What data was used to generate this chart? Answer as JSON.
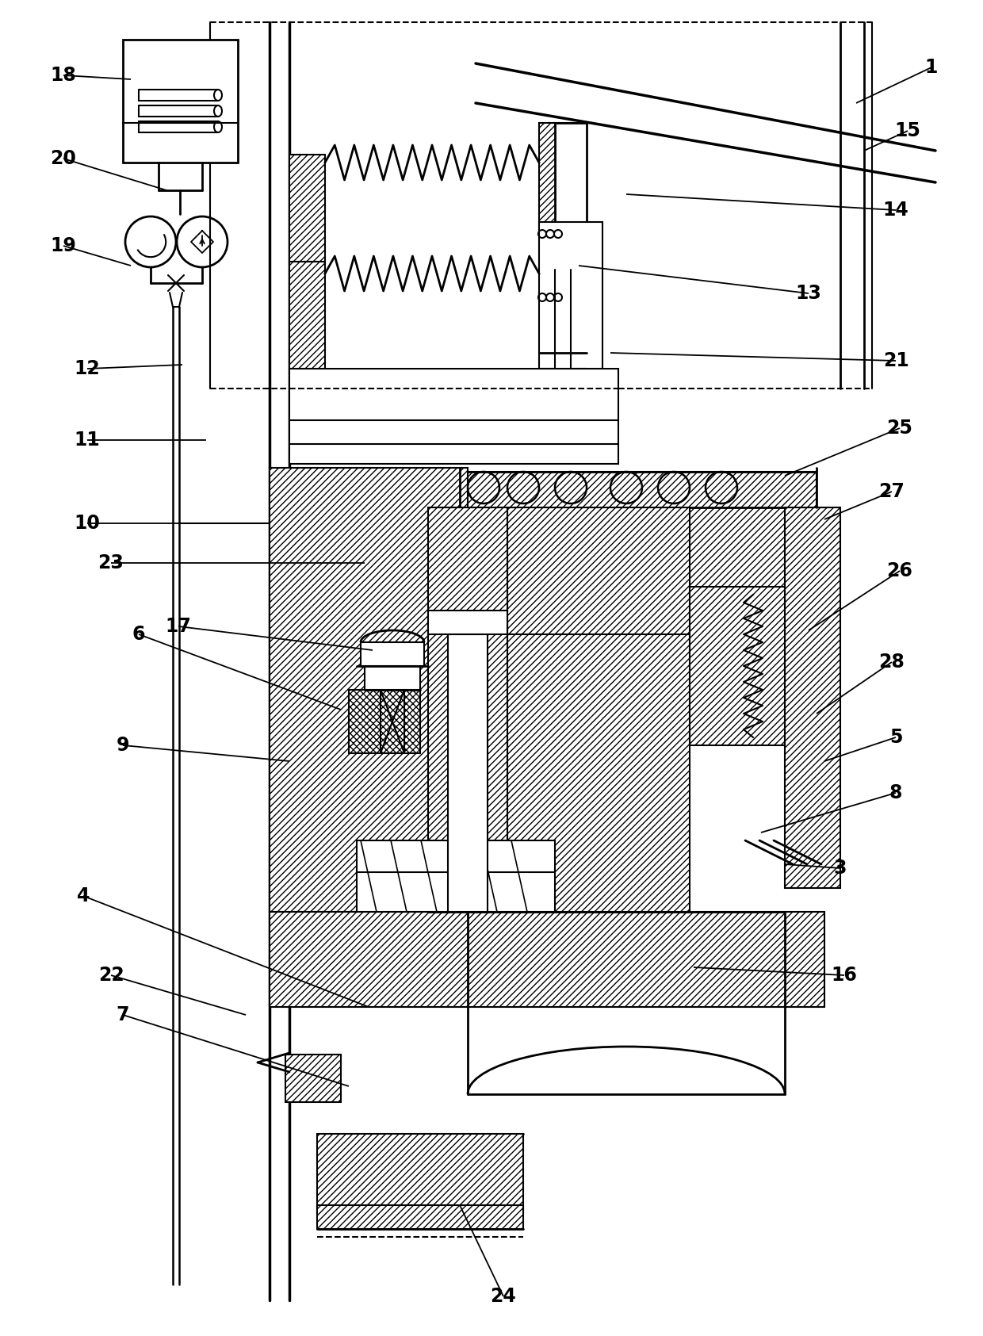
{
  "bg_color": "#ffffff",
  "figsize": [
    12.4,
    16.85
  ],
  "dpi": 100,
  "labels": [
    [
      "1",
      1175,
      85,
      1080,
      130
    ],
    [
      "3",
      1060,
      1095,
      990,
      1090
    ],
    [
      "4",
      105,
      1130,
      465,
      1270
    ],
    [
      "5",
      1130,
      930,
      1040,
      960
    ],
    [
      "6",
      175,
      800,
      430,
      895
    ],
    [
      "7",
      155,
      1280,
      440,
      1370
    ],
    [
      "8",
      1130,
      1000,
      960,
      1050
    ],
    [
      "9",
      155,
      940,
      365,
      960
    ],
    [
      "10",
      110,
      660,
      260,
      660
    ],
    [
      "11",
      110,
      555,
      260,
      555
    ],
    [
      "12",
      110,
      465,
      230,
      460
    ],
    [
      "13",
      1020,
      370,
      730,
      335
    ],
    [
      "14",
      1130,
      265,
      790,
      245
    ],
    [
      "15",
      1145,
      165,
      1090,
      190
    ],
    [
      "16",
      1065,
      1230,
      875,
      1220
    ],
    [
      "17",
      225,
      790,
      470,
      820
    ],
    [
      "18",
      80,
      95,
      165,
      100
    ],
    [
      "19",
      80,
      310,
      165,
      335
    ],
    [
      "20",
      80,
      200,
      210,
      240
    ],
    [
      "21",
      1130,
      455,
      770,
      445
    ],
    [
      "22",
      140,
      1230,
      310,
      1280
    ],
    [
      "23",
      140,
      710,
      460,
      710
    ],
    [
      "24",
      635,
      1635,
      580,
      1520
    ],
    [
      "25",
      1135,
      540,
      990,
      600
    ],
    [
      "26",
      1135,
      720,
      1020,
      795
    ],
    [
      "27",
      1125,
      620,
      1040,
      655
    ],
    [
      "28",
      1125,
      835,
      1030,
      900
    ]
  ]
}
